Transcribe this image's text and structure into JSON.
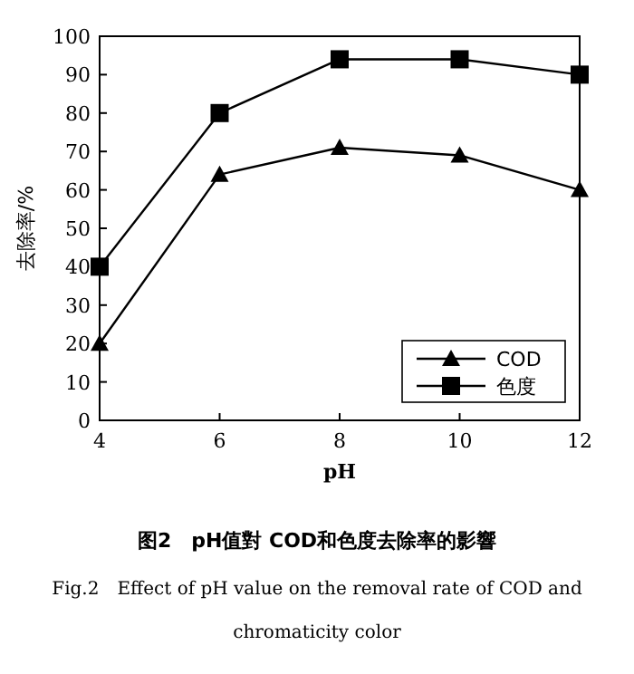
{
  "chart_data": {
    "type": "line",
    "title": "图2　pH值對 COD和色度去除率的影響",
    "subtitle": "Fig.2　Effect of pH value on the removal rate of COD and chromaticity color",
    "xlabel": "pH",
    "ylabel": "去除率/%",
    "x": [
      4,
      6,
      8,
      10,
      12
    ],
    "xlim": [
      4,
      12
    ],
    "xticks": [
      4,
      6,
      8,
      10,
      12
    ],
    "ylim": [
      0,
      100
    ],
    "yticks": [
      0,
      10,
      20,
      30,
      40,
      50,
      60,
      70,
      80,
      90,
      100
    ],
    "legend": "bottom right",
    "grid": false,
    "line_style": "solid",
    "series": [
      {
        "name": "COD",
        "color": "#000000",
        "marker": "triangle",
        "values": [
          20,
          64,
          71,
          69,
          60
        ]
      },
      {
        "name": "色度",
        "color": "#000000",
        "marker": "square",
        "values": [
          40,
          80,
          94,
          94,
          90
        ]
      }
    ]
  }
}
